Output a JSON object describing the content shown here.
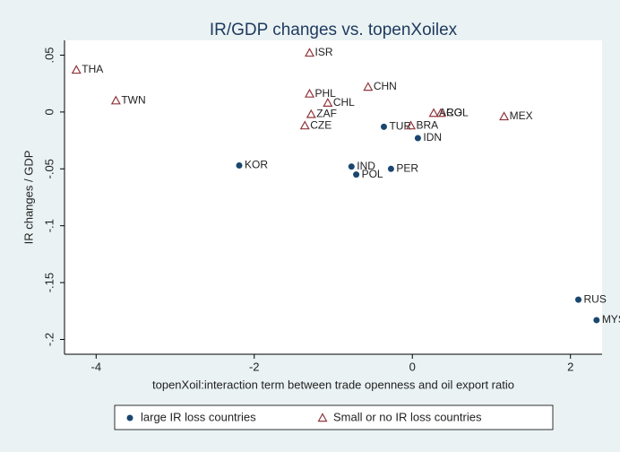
{
  "chart_data": {
    "type": "scatter",
    "title": "IR/GDP changes vs. topenXoilex",
    "x_label": "topenXoil:interaction term between trade openness and oil export ratio",
    "y_label": "IR changes / GDP",
    "xlim": [
      -4.4,
      2.4
    ],
    "ylim": [
      -0.213,
      0.063
    ],
    "xticks": [
      -4,
      -2,
      0,
      2
    ],
    "yticks": [
      {
        "value": 0.05,
        "label": ".05"
      },
      0,
      {
        "value": -0.05,
        "label": "-.05"
      },
      {
        "value": -0.1,
        "label": "-.1"
      },
      {
        "value": -0.15,
        "label": "-.15"
      },
      {
        "value": -0.2,
        "label": "-.2"
      }
    ],
    "legend": "bottom",
    "series": [
      {
        "name": "large IR loss countries",
        "color": "#1a476f",
        "marker": "circle",
        "point_labels": [
          "KOR",
          "TUR",
          "IDN",
          "IND",
          "POL",
          "PER",
          "RUS",
          "MYS"
        ],
        "x": [
          -2.19,
          -0.36,
          0.07,
          -0.77,
          -0.71,
          -0.27,
          2.1,
          2.33
        ],
        "values": [
          -0.047,
          -0.013,
          -0.023,
          -0.048,
          -0.055,
          -0.05,
          -0.165,
          -0.183
        ]
      },
      {
        "name": "Small or no IR loss countries",
        "color": "#90353b",
        "marker": "triangle",
        "point_labels": [
          "THA",
          "TWN",
          "ISR",
          "PHL",
          "CHL",
          "ZAF",
          "CZE",
          "CHN",
          "ARG",
          "COL",
          "MEX",
          "BRA"
        ],
        "x": [
          -4.25,
          -3.75,
          -1.3,
          -1.3,
          -1.07,
          -1.28,
          -1.36,
          -0.56,
          0.27,
          0.36,
          1.16,
          -0.02
        ],
        "values": [
          0.037,
          0.01,
          0.052,
          0.016,
          0.008,
          -0.002,
          -0.012,
          0.022,
          -0.001,
          -0.001,
          -0.004,
          -0.012
        ]
      }
    ]
  }
}
